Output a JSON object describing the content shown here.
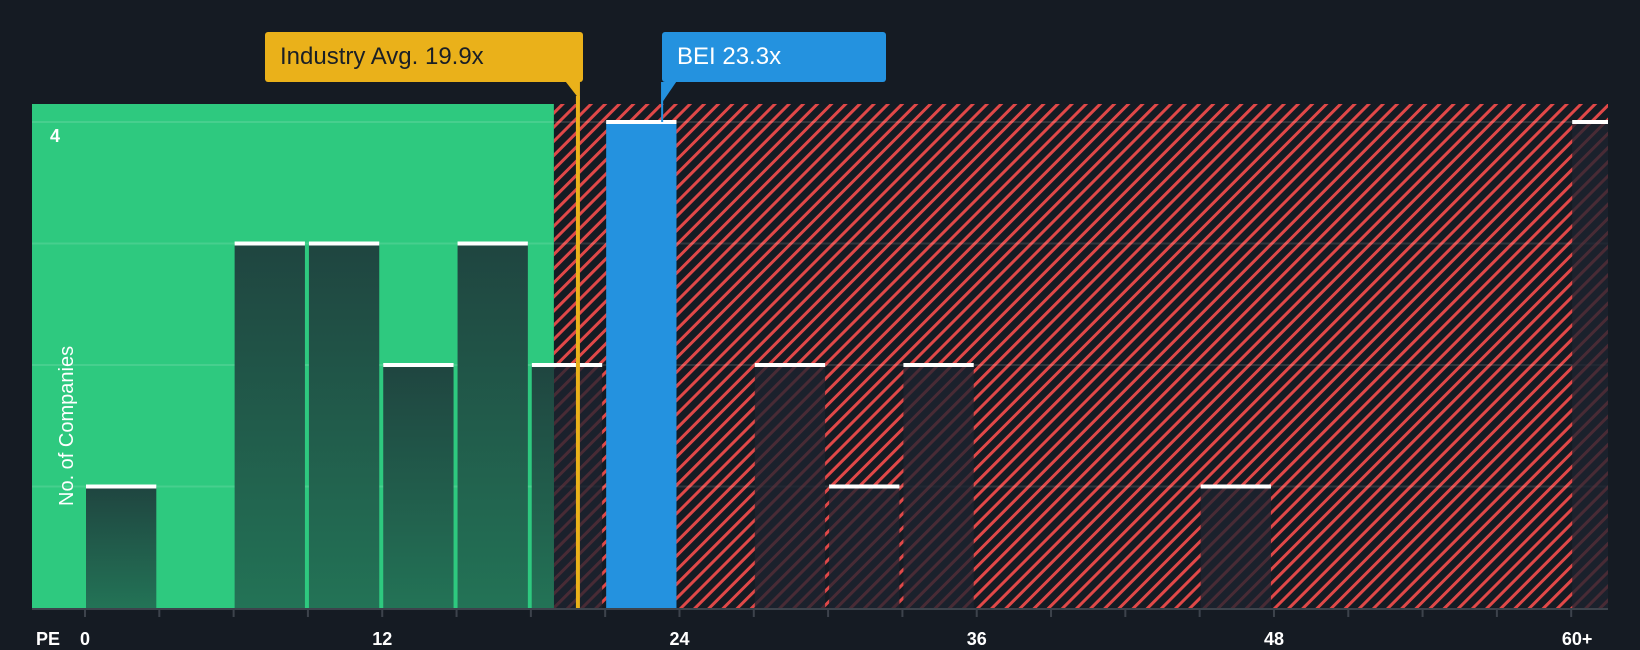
{
  "chart_data": {
    "type": "bar",
    "title": "",
    "xlabel": "PE",
    "ylabel": "No. of Companies",
    "x_tick_labels": [
      "0",
      "12",
      "24",
      "36",
      "48",
      "60+"
    ],
    "x_tick_values": [
      0,
      12,
      24,
      36,
      48,
      60
    ],
    "y_tick_labels": [
      "4"
    ],
    "ylim": [
      0,
      4
    ],
    "xlim": [
      -2,
      63
    ],
    "bin_width": 3,
    "categories": [
      "0-3",
      "3-6",
      "6-9",
      "9-12",
      "12-15",
      "15-18",
      "18-21",
      "21-24",
      "24-27",
      "27-30",
      "30-33",
      "33-36",
      "36-39",
      "39-42",
      "42-45",
      "45-48",
      "48-51",
      "51-54",
      "54-57",
      "57-60",
      "60+"
    ],
    "bin_starts": [
      0,
      3,
      6,
      9,
      12,
      15,
      18,
      21,
      24,
      27,
      30,
      33,
      36,
      39,
      42,
      45,
      48,
      51,
      54,
      57,
      60
    ],
    "values": [
      1,
      0,
      3,
      3,
      2,
      3,
      2,
      4,
      0,
      2,
      1,
      2,
      0,
      0,
      0,
      1,
      0,
      0,
      0,
      0,
      4
    ],
    "highlight_bin": "21-24",
    "grid": true,
    "legend": "none",
    "annotations": [
      {
        "label": "Industry Avg. 19.9x",
        "value": 19.9,
        "color": "#eab11a"
      },
      {
        "label": "BEI 23.3x",
        "value": 23.3,
        "color": "#2492df"
      }
    ],
    "regions": [
      {
        "name": "undervalued",
        "from": -2,
        "to": 19.9,
        "color": "#2ec97f"
      },
      {
        "name": "overvalued",
        "from": 19.9,
        "to": 63,
        "color": "#e04848",
        "pattern": "hatch"
      }
    ]
  },
  "callouts": {
    "industry": "Industry Avg. 19.9x",
    "company": "BEI 23.3x"
  },
  "axis": {
    "x_label": "PE",
    "y_label": "No. of Companies",
    "y_max_label": "4"
  },
  "colors": {
    "background": "#151b23",
    "undervalued_zone": "#2ec97f",
    "overvalued_hatch": "#e04848",
    "industry": "#eab11a",
    "company": "#2492df",
    "bar_top": "#ffffff"
  }
}
